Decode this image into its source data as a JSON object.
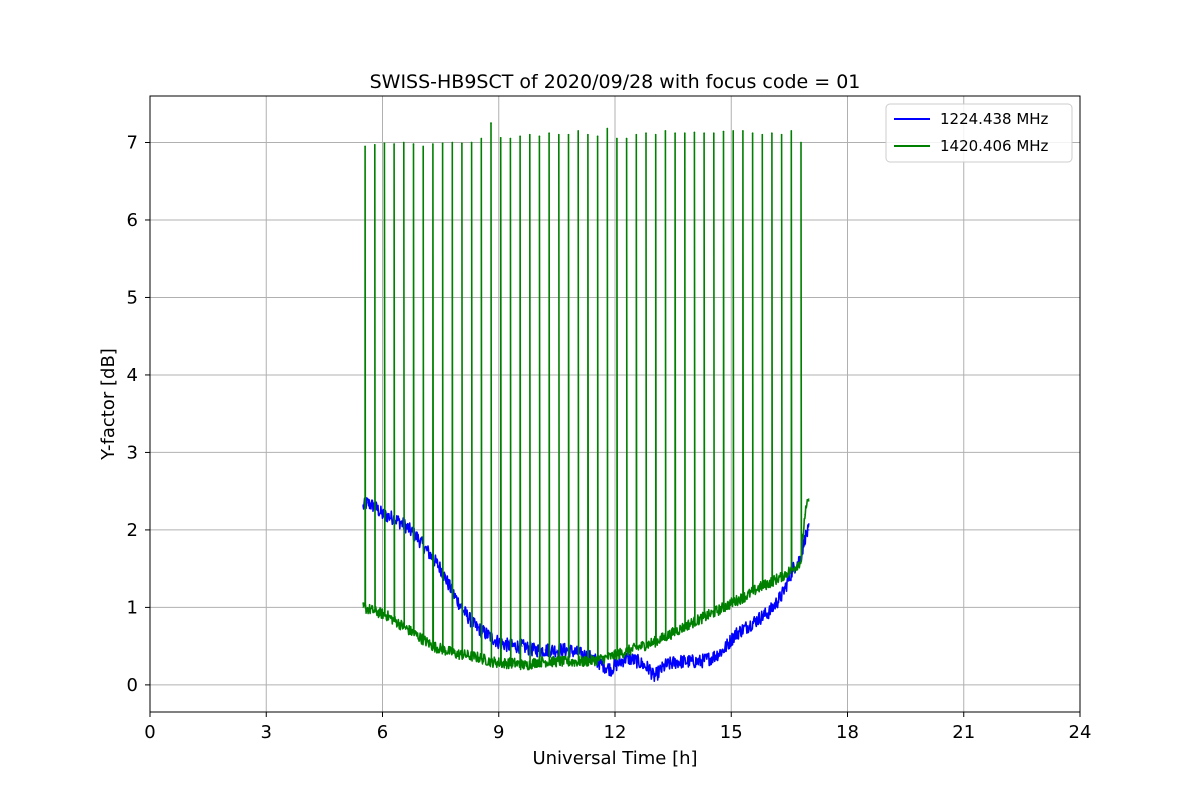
{
  "chart_data": {
    "type": "line",
    "title": "SWISS-HB9SCT of 2020/09/28 with focus code = 01",
    "xlabel": "Universal Time [h]",
    "ylabel": "Y-factor [dB]",
    "xlim": [
      0,
      24
    ],
    "ylim": [
      -0.35,
      7.6
    ],
    "xticks": [
      0,
      3,
      6,
      9,
      12,
      15,
      18,
      21,
      24
    ],
    "yticks": [
      0,
      1,
      2,
      3,
      4,
      5,
      6,
      7
    ],
    "grid": true,
    "legend_position": "top-right",
    "series": [
      {
        "name": "1224.438 MHz",
        "color": "#0000ff",
        "x": [
          5.5,
          5.6,
          5.8,
          6.0,
          6.3,
          6.6,
          6.9,
          7.2,
          7.5,
          7.8,
          8.1,
          8.4,
          8.7,
          9.0,
          9.3,
          9.6,
          9.9,
          10.2,
          10.5,
          10.8,
          11.1,
          11.4,
          11.7,
          11.9,
          12.0,
          12.3,
          12.6,
          12.9,
          13.0,
          13.3,
          13.6,
          13.9,
          14.2,
          14.5,
          14.8,
          15.1,
          15.4,
          15.7,
          16.0,
          16.3,
          16.6,
          16.8,
          16.9,
          17.0
        ],
        "y": [
          2.3,
          2.35,
          2.3,
          2.2,
          2.15,
          2.05,
          1.9,
          1.7,
          1.5,
          1.2,
          0.95,
          0.75,
          0.65,
          0.55,
          0.5,
          0.5,
          0.45,
          0.45,
          0.45,
          0.45,
          0.4,
          0.35,
          0.25,
          0.2,
          0.25,
          0.35,
          0.3,
          0.2,
          0.1,
          0.25,
          0.3,
          0.3,
          0.3,
          0.35,
          0.45,
          0.65,
          0.75,
          0.85,
          0.95,
          1.15,
          1.5,
          1.65,
          1.9,
          2.0
        ]
      },
      {
        "name": "1420.406 MHz",
        "color": "#008000",
        "x": [
          5.5,
          5.8,
          6.1,
          6.4,
          6.7,
          7.0,
          7.3,
          7.6,
          7.9,
          8.2,
          8.5,
          8.8,
          9.1,
          9.4,
          9.7,
          10.0,
          10.3,
          10.6,
          10.9,
          11.2,
          11.5,
          11.8,
          12.1,
          12.4,
          12.7,
          13.0,
          13.3,
          13.6,
          13.9,
          14.2,
          14.5,
          14.8,
          15.1,
          15.4,
          15.7,
          16.0,
          16.3,
          16.6,
          16.8,
          16.9,
          17.0
        ],
        "y": [
          1.0,
          0.95,
          0.9,
          0.8,
          0.7,
          0.6,
          0.5,
          0.45,
          0.4,
          0.38,
          0.35,
          0.3,
          0.28,
          0.28,
          0.25,
          0.3,
          0.3,
          0.3,
          0.3,
          0.3,
          0.32,
          0.35,
          0.4,
          0.45,
          0.5,
          0.55,
          0.62,
          0.7,
          0.78,
          0.85,
          0.92,
          1.0,
          1.08,
          1.15,
          1.25,
          1.32,
          1.4,
          1.5,
          1.6,
          2.2,
          2.4
        ],
        "spike_x": [
          5.55,
          5.8,
          6.05,
          6.3,
          6.55,
          6.8,
          7.05,
          7.3,
          7.55,
          7.8,
          8.05,
          8.3,
          8.55,
          8.8,
          9.05,
          9.3,
          9.55,
          9.8,
          10.05,
          10.3,
          10.55,
          10.8,
          11.05,
          11.3,
          11.55,
          11.8,
          12.05,
          12.3,
          12.55,
          12.8,
          13.05,
          13.3,
          13.55,
          13.8,
          14.05,
          14.3,
          14.55,
          14.8,
          15.05,
          15.3,
          15.55,
          15.8,
          16.05,
          16.3,
          16.55,
          16.8
        ],
        "spike_y": [
          6.95,
          6.97,
          6.99,
          6.98,
          7.0,
          6.98,
          6.95,
          6.98,
          6.99,
          7.0,
          6.99,
          7.0,
          7.05,
          7.25,
          7.06,
          7.05,
          7.08,
          7.1,
          7.08,
          7.12,
          7.1,
          7.1,
          7.15,
          7.1,
          7.08,
          7.18,
          7.05,
          7.05,
          7.1,
          7.12,
          7.1,
          7.15,
          7.12,
          7.12,
          7.13,
          7.12,
          7.12,
          7.14,
          7.15,
          7.15,
          7.12,
          7.1,
          7.12,
          7.1,
          7.15,
          7.0
        ]
      }
    ]
  }
}
